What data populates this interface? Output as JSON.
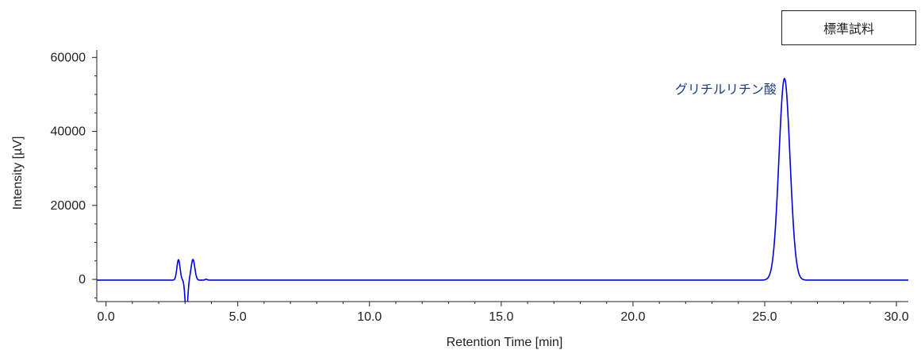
{
  "chart_data": {
    "type": "line",
    "title": "",
    "xlabel": "Retention Time [min]",
    "ylabel": "Intensity [µV]",
    "xlim": [
      -0.35,
      30.45
    ],
    "ylim": [
      -6000,
      62000
    ],
    "x_ticks": [
      0,
      5,
      10,
      15,
      20,
      25,
      30
    ],
    "x_tick_labels": [
      "0.0",
      "5.0",
      "10.0",
      "15.0",
      "20.0",
      "25.0",
      "30.0"
    ],
    "y_ticks": [
      0,
      20000,
      40000,
      60000
    ],
    "y_tick_labels": [
      "0",
      "20000",
      "40000",
      "60000"
    ],
    "grid": false,
    "legend_label": "標準試料",
    "legend_position": "top-right",
    "line_color": "#0000dd",
    "label_color": "#1a3a8c",
    "peaks": [
      {
        "center": 2.75,
        "height": 5500,
        "width": 0.06
      },
      {
        "center": 3.05,
        "height": -9000,
        "width": 0.05
      },
      {
        "center": 3.3,
        "height": 5600,
        "width": 0.07
      },
      {
        "center": 3.8,
        "height": 250,
        "width": 0.04
      },
      {
        "center": 25.75,
        "height": 54500,
        "width": 0.21
      }
    ],
    "annotations": [
      {
        "text": "グリチルリチン酸",
        "x": 25.75,
        "y": 54500
      }
    ],
    "baseline": -200
  }
}
